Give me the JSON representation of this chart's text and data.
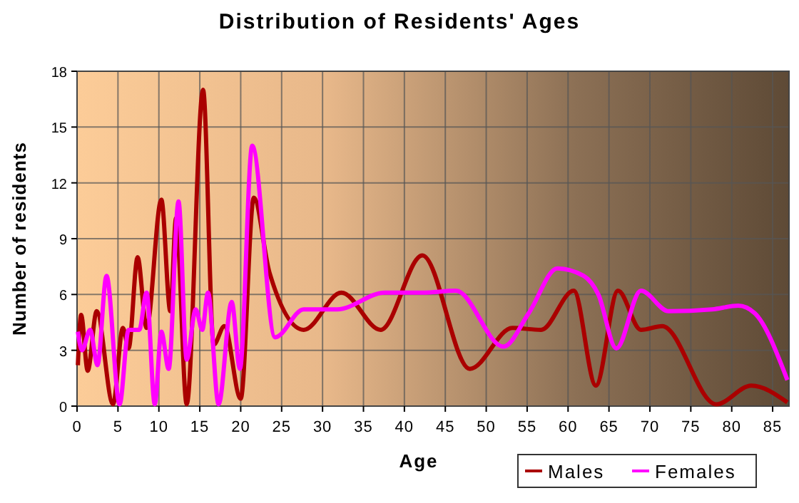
{
  "chart_data": {
    "type": "line",
    "title": "Distribution of Residents' Ages",
    "xlabel": "Age",
    "ylabel": "Number of residents",
    "xlim": [
      0,
      87
    ],
    "xticks": [
      0,
      5,
      10,
      15,
      20,
      25,
      30,
      35,
      40,
      45,
      50,
      55,
      60,
      65,
      70,
      75,
      80,
      85
    ],
    "ylim": [
      0,
      18
    ],
    "yticks": [
      0,
      3,
      6,
      9,
      12,
      15,
      18
    ],
    "grid": true,
    "legend": "bottom right",
    "series": [
      {
        "name": "Males",
        "color": "#aa0000",
        "x": [
          0.1,
          0.5,
          1.3,
          2.4,
          4.4,
          5.6,
          6.3,
          7.4,
          8.5,
          10.3,
          11.4,
          12.1,
          13.4,
          15.4,
          16.7,
          18,
          20,
          21.6,
          23.5,
          27.7,
          32.3,
          37.1,
          42.2,
          48,
          53.2,
          56.7,
          60.7,
          63.4,
          66.1,
          68.9,
          71.5,
          78.1,
          82.4,
          86.8
        ],
        "values": [
          2.2,
          4.9,
          1.9,
          5.1,
          0.1,
          4.2,
          3.1,
          8,
          4.2,
          11.1,
          5.1,
          10.1,
          0.1,
          17,
          3.3,
          4.3,
          0.4,
          11.2,
          7.2,
          4.1,
          6.1,
          4.1,
          8.1,
          2,
          4.2,
          4.1,
          6.2,
          1.1,
          6.2,
          4.1,
          4.3,
          0.1,
          1.1,
          0.2
        ]
      },
      {
        "name": "Females",
        "color": "#ff00ff",
        "x": [
          0.1,
          0.6,
          1.6,
          2.5,
          3.6,
          5.2,
          6.3,
          7.6,
          8.5,
          9.5,
          10.3,
          11.2,
          12.4,
          13.4,
          14.5,
          15.3,
          16,
          17.3,
          18.9,
          19.9,
          21.4,
          24.2,
          27.7,
          31.8,
          37.6,
          42.2,
          46.3,
          52.1,
          55.2,
          58.7,
          61.9,
          63.7,
          65.9,
          68.9,
          72.3,
          77.6,
          80.8,
          82.8,
          86.8
        ],
        "values": [
          4,
          3,
          4.1,
          2.2,
          7,
          0.1,
          4.1,
          4.1,
          6.1,
          0.1,
          4,
          2,
          11,
          2.5,
          5.2,
          4.1,
          6.1,
          0.1,
          5.6,
          2,
          14,
          3.7,
          5.2,
          5.2,
          6.1,
          6.1,
          6.2,
          3.2,
          5,
          7.4,
          7,
          6,
          3.1,
          6.2,
          5.1,
          5.2,
          5.4,
          5,
          1.4
        ]
      }
    ]
  }
}
